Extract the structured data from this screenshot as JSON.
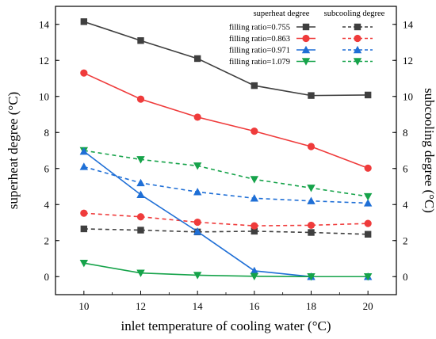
{
  "chart_data": {
    "type": "line",
    "xlabel": "inlet temperature of cooling water (°C)",
    "ylabel_left": "superheat degree (°C)",
    "ylabel_right": "subcooling degree (°C)",
    "x": [
      10,
      12,
      14,
      16,
      18,
      20
    ],
    "xlim": [
      9,
      21
    ],
    "ylim": [
      -1,
      15
    ],
    "yticks": [
      0,
      2,
      4,
      6,
      8,
      10,
      12,
      14
    ],
    "xticks": [
      10,
      12,
      14,
      16,
      18,
      20
    ],
    "legend": {
      "position": "top-right",
      "header_superheat": "superheat degree",
      "header_subcooling": "subcooling degree"
    },
    "series": [
      {
        "name": "filling ratio=0.755",
        "kind": "superheat",
        "color": "#3f3f3f",
        "marker": "square",
        "dashed": false,
        "values": [
          14.15,
          13.1,
          12.1,
          10.6,
          10.05,
          10.08
        ]
      },
      {
        "name": "filling ratio=0.863",
        "kind": "superheat",
        "color": "#ef3b3b",
        "marker": "circle",
        "dashed": false,
        "values": [
          11.3,
          9.85,
          8.85,
          8.07,
          7.22,
          6.02
        ]
      },
      {
        "name": "filling ratio=0.971",
        "kind": "superheat",
        "color": "#1f6fd6",
        "marker": "triangle-up",
        "dashed": false,
        "values": [
          6.95,
          4.55,
          2.5,
          0.32,
          0.0,
          0.0
        ]
      },
      {
        "name": "filling ratio=1.079",
        "kind": "superheat",
        "color": "#16a34a",
        "marker": "triangle-down",
        "dashed": false,
        "values": [
          0.75,
          0.2,
          0.08,
          0.02,
          0.0,
          0.0
        ]
      },
      {
        "name": "filling ratio=0.755",
        "kind": "subcooling",
        "color": "#3f3f3f",
        "marker": "square",
        "dashed": true,
        "values": [
          2.65,
          2.58,
          2.48,
          2.52,
          2.45,
          2.35
        ]
      },
      {
        "name": "filling ratio=0.863",
        "kind": "subcooling",
        "color": "#ef3b3b",
        "marker": "circle",
        "dashed": true,
        "values": [
          3.52,
          3.32,
          3.02,
          2.82,
          2.85,
          2.95
        ]
      },
      {
        "name": "filling ratio=0.971",
        "kind": "subcooling",
        "color": "#1f6fd6",
        "marker": "triangle-up",
        "dashed": true,
        "values": [
          6.1,
          5.2,
          4.7,
          4.35,
          4.2,
          4.08
        ]
      },
      {
        "name": "filling ratio=1.079",
        "kind": "subcooling",
        "color": "#16a34a",
        "marker": "triangle-down",
        "dashed": true,
        "values": [
          7.0,
          6.5,
          6.15,
          5.4,
          4.92,
          4.45
        ]
      }
    ]
  }
}
